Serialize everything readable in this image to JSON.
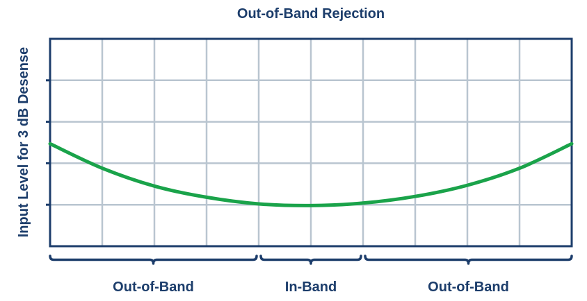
{
  "chart_data": {
    "type": "line",
    "title": "Out-of-Band Rejection",
    "xlabel": "",
    "ylabel": "Input Level for 3 dB Desense",
    "grid": true,
    "legend": "none",
    "x_ticks_count": 10,
    "y_ticks_count": 5,
    "xlim": [
      0,
      10
    ],
    "ylim": [
      0,
      5
    ],
    "series": [
      {
        "x": [
          0,
          1,
          2,
          3,
          4,
          5,
          6,
          7,
          8,
          9,
          10
        ],
        "values": [
          2.47,
          1.88,
          1.45,
          1.18,
          1.02,
          0.98,
          1.04,
          1.2,
          1.47,
          1.88,
          2.47
        ]
      }
    ],
    "bands": [
      {
        "label": "Out-of-Band",
        "from": 0,
        "to": 4
      },
      {
        "label": "In-Band",
        "from": 4,
        "to": 6
      },
      {
        "label": "Out-of-Band",
        "from": 6,
        "to": 10
      }
    ],
    "colors": {
      "curve": "#1aa34a",
      "frame": "#1c3d6b",
      "grid": "#b9c5d0"
    }
  }
}
